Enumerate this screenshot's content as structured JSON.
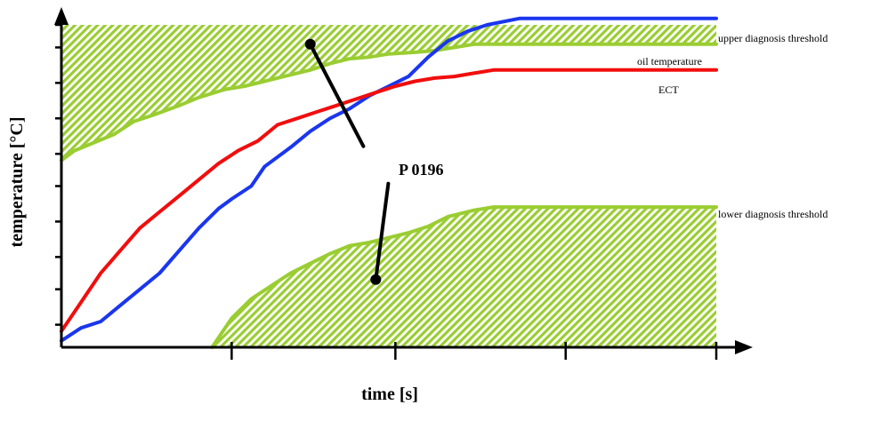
{
  "chart_data": {
    "type": "line",
    "title": "",
    "xlabel": "time [s]",
    "ylabel": "temperature [°C]",
    "xlim": [
      0,
      100
    ],
    "ylim": [
      0,
      100
    ],
    "grid": false,
    "legend": "inline labels at right end of each curve",
    "x_ticks": [
      26,
      51,
      77,
      100
    ],
    "y_ticks": [
      7,
      18,
      28,
      39,
      50,
      60,
      71,
      82,
      93,
      100
    ],
    "series": [
      {
        "name": "upper diagnosis threshold",
        "color": "#9acd32",
        "fill": "above",
        "fill_pattern": "hatched",
        "x": [
          0,
          2,
          5,
          8,
          11,
          14,
          18,
          21,
          25,
          28,
          31,
          34,
          38,
          41,
          44,
          47,
          50,
          54,
          57,
          60,
          63,
          66,
          70,
          74,
          80,
          86,
          93,
          100
        ],
        "y": [
          58,
          61,
          63.5,
          66,
          70,
          72,
          75,
          77.5,
          80,
          81,
          82.5,
          84,
          86,
          88,
          89.5,
          90,
          91,
          91.5,
          92,
          93,
          94,
          94,
          94,
          94,
          94,
          94,
          94,
          94
        ]
      },
      {
        "name": "lower diagnosis threshold",
        "color": "#9acd32",
        "fill": "below",
        "fill_pattern": "hatched",
        "x": [
          23,
          26,
          29,
          32,
          35,
          38,
          41,
          44,
          47,
          50,
          53,
          56,
          59,
          63,
          66,
          70,
          74,
          80,
          86,
          93,
          100
        ],
        "y": [
          0,
          9,
          15,
          19,
          23,
          26,
          29,
          31.5,
          32.5,
          34,
          35.5,
          37.5,
          40.5,
          42.5,
          43.5,
          43.5,
          43.5,
          43.5,
          43.5,
          43.5,
          43.5
        ]
      },
      {
        "name": "oil temperature",
        "color": "#1a36ee",
        "x": [
          0,
          3,
          6,
          9,
          12,
          15,
          18,
          21,
          24,
          26,
          29,
          31,
          35,
          38,
          41,
          44,
          47,
          50,
          53,
          56,
          59,
          62,
          65,
          70,
          75,
          80,
          86,
          93,
          100
        ],
        "y": [
          2,
          6,
          8,
          13,
          18,
          23,
          30,
          37,
          43,
          46,
          50,
          56,
          62,
          67,
          71,
          74,
          78,
          81,
          84,
          90,
          95,
          98,
          100,
          102,
          102,
          102,
          102,
          102,
          102
        ]
      },
      {
        "name": "ECT",
        "color": "#f20d0d",
        "x": [
          0,
          3,
          6,
          9,
          12,
          15,
          18,
          21,
          24,
          27,
          30,
          33,
          36,
          39,
          42,
          45,
          48,
          51,
          54,
          57,
          60,
          63,
          66,
          70,
          75,
          80,
          86,
          93,
          100
        ],
        "y": [
          5,
          14,
          23,
          30,
          37,
          42,
          47,
          52,
          57,
          61,
          64,
          69,
          71,
          73,
          75,
          77,
          79,
          81,
          82.5,
          83.5,
          84,
          85,
          86,
          86,
          86,
          86,
          86,
          86,
          86
        ]
      }
    ],
    "annotations": [
      {
        "text": "P 0196",
        "label_x": 51,
        "label_y": 64,
        "points_to": [
          [
            38,
            94
          ],
          [
            48,
            21
          ]
        ]
      }
    ]
  },
  "labels": {
    "upper": "upper diagnosis threshold",
    "oil": "oil temperature",
    "ect": "ECT",
    "lower": "lower diagnosis threshold",
    "xlabel": "time [s]",
    "ylabel": "temperature [°C]",
    "code": "P 0196"
  }
}
